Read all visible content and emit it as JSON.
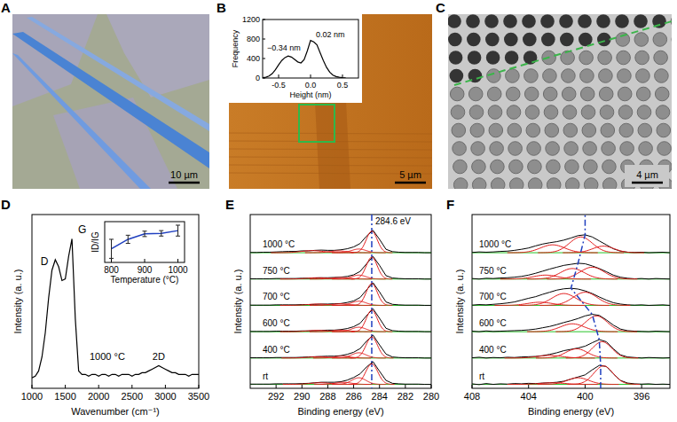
{
  "images": [
    {
      "label": "A",
      "scale_bar": "10 µm"
    },
    {
      "label": "B",
      "scale_bar": "5 µm"
    },
    {
      "label": "C",
      "scale_bar": "4 µm"
    }
  ],
  "chart_data": [
    {
      "type": "line",
      "x_label": "Height (nm)",
      "y_label": "Frequency",
      "xlim": [
        -0.75,
        0.75
      ],
      "ylim": [
        0,
        1200
      ],
      "xticks": [
        -0.5,
        {
          "value": 0,
          "label": "0.0"
        },
        0.5
      ],
      "yticks": [
        0,
        400,
        800,
        1200
      ],
      "annotations": [
        "−0.34 nm",
        "0.02 nm"
      ],
      "x": [
        -0.75,
        -0.7,
        -0.65,
        -0.6,
        -0.55,
        -0.5,
        -0.45,
        -0.4,
        -0.35,
        -0.3,
        -0.25,
        -0.2,
        -0.15,
        -0.1,
        -0.05,
        0,
        0.05,
        0.1,
        0.15,
        0.2,
        0.25,
        0.3,
        0.35,
        0.4,
        0.45,
        0.5,
        0.55
      ],
      "series": [
        {
          "color": "#000000",
          "values": [
            5,
            15,
            40,
            90,
            170,
            270,
            360,
            420,
            450,
            430,
            380,
            330,
            310,
            380,
            560,
            770,
            740,
            680,
            520,
            360,
            220,
            120,
            60,
            30,
            15,
            8,
            3
          ]
        }
      ]
    },
    {
      "type": "line",
      "label": "D",
      "x_label": "Wavenumber (cm⁻¹)",
      "y_label": "Intensity (a. u.)",
      "xlim": [
        1000,
        3500
      ],
      "ylim": [
        0,
        1
      ],
      "xticks": [
        1000,
        1500,
        2000,
        2500,
        3000,
        3500
      ],
      "tick_labels": "x",
      "annotations": [
        "D",
        "G",
        "2D",
        "1000 °C"
      ],
      "x": [
        1000,
        1050,
        1100,
        1150,
        1200,
        1250,
        1300,
        1350,
        1400,
        1450,
        1500,
        1550,
        1600,
        1650,
        1700,
        1750,
        1800,
        1850,
        1900,
        1950,
        2000,
        2050,
        2100,
        2150,
        2200,
        2250,
        2300,
        2350,
        2400,
        2450,
        2500,
        2550,
        2600,
        2650,
        2700,
        2750,
        2800,
        2850,
        2900,
        2950,
        3000,
        3050,
        3100,
        3150,
        3200,
        3250,
        3300,
        3350,
        3400,
        3450,
        3500
      ],
      "series": [
        {
          "color": "#000000",
          "values": [
            0.06,
            0.07,
            0.1,
            0.18,
            0.32,
            0.52,
            0.68,
            0.74,
            0.7,
            0.62,
            0.63,
            0.76,
            0.86,
            0.4,
            0.1,
            0.08,
            0.08,
            0.07,
            0.08,
            0.08,
            0.07,
            0.08,
            0.08,
            0.07,
            0.08,
            0.08,
            0.07,
            0.08,
            0.08,
            0.08,
            0.07,
            0.08,
            0.08,
            0.09,
            0.09,
            0.1,
            0.11,
            0.12,
            0.13,
            0.12,
            0.11,
            0.1,
            0.09,
            0.09,
            0.08,
            0.08,
            0.08,
            0.07,
            0.08,
            0.08,
            0.08
          ]
        }
      ]
    },
    {
      "type": "line",
      "x_label": "Temperature (°C)",
      "y_label": "ID/IG",
      "xlim": [
        780,
        1020
      ],
      "ylim": [
        1.1,
        2.6
      ],
      "xticks": [
        800,
        900,
        1000
      ],
      "tick_labels": "x",
      "x": [
        800,
        850,
        900,
        950,
        1000
      ],
      "series": [
        {
          "color": "#1f3fbf",
          "values": [
            1.6,
            1.95,
            2.15,
            2.17,
            2.27
          ],
          "errors": [
            0.35,
            0.15,
            0.1,
            0.1,
            0.2
          ]
        }
      ]
    },
    {
      "type": "line",
      "label": "E",
      "x_label": "Binding energy (eV)",
      "y_label": "Intensity (a. u.)",
      "xlim": [
        294,
        280
      ],
      "ylim": [
        0,
        6.6
      ],
      "xticks": [
        292,
        290,
        288,
        286,
        284,
        282,
        280
      ],
      "tick_labels": "x",
      "ref_line": 284.6,
      "annotations": [
        "284.6 eV"
      ],
      "x": [
        294,
        293.5,
        293,
        292.5,
        292,
        291.5,
        291,
        290.5,
        290,
        289.5,
        289,
        288.5,
        288,
        287.5,
        287,
        286.5,
        286,
        285.5,
        285,
        284.5,
        284,
        283.5,
        283,
        282.5,
        282,
        281.5,
        281,
        280.5,
        280
      ],
      "series": [
        {
          "name": "rt",
          "color": "#000000",
          "baseline": 0.15,
          "components": [
            {
              "center": 284.6,
              "height": 0.78,
              "fwhm": 1.1
            },
            {
              "center": 285.6,
              "height": 0.25,
              "fwhm": 1.3
            },
            {
              "center": 286.8,
              "height": 0.08,
              "fwhm": 1.4
            },
            {
              "center": 288.6,
              "height": 0.06,
              "fwhm": 1.8
            }
          ],
          "values": [
            0.16,
            0.16,
            0.16,
            0.16,
            0.17,
            0.17,
            0.17,
            0.17,
            0.18,
            0.19,
            0.21,
            0.23,
            0.23,
            0.23,
            0.25,
            0.31,
            0.41,
            0.55,
            0.81,
            1.01,
            0.65,
            0.3,
            0.19,
            0.17,
            0.16,
            0.16,
            0.16,
            0.15,
            0.15
          ]
        },
        {
          "name": "400 °C",
          "color": "#000000",
          "baseline": 1.15,
          "components": [
            {
              "center": 284.6,
              "height": 0.8,
              "fwhm": 1.05
            },
            {
              "center": 285.6,
              "height": 0.2,
              "fwhm": 1.3
            },
            {
              "center": 286.9,
              "height": 0.07,
              "fwhm": 1.4
            },
            {
              "center": 288.7,
              "height": 0.05,
              "fwhm": 1.8
            }
          ],
          "values": [
            1.16,
            1.16,
            1.16,
            1.16,
            1.17,
            1.17,
            1.17,
            1.17,
            1.18,
            1.19,
            1.2,
            1.21,
            1.22,
            1.22,
            1.24,
            1.29,
            1.37,
            1.51,
            1.79,
            2.02,
            1.65,
            1.3,
            1.19,
            1.17,
            1.16,
            1.16,
            1.16,
            1.15,
            1.15
          ]
        },
        {
          "name": "600 °C",
          "color": "#000000",
          "baseline": 2.15,
          "components": [
            {
              "center": 284.6,
              "height": 0.82,
              "fwhm": 1.0
            },
            {
              "center": 285.6,
              "height": 0.17,
              "fwhm": 1.3
            },
            {
              "center": 287.0,
              "height": 0.06,
              "fwhm": 1.5
            },
            {
              "center": 288.8,
              "height": 0.05,
              "fwhm": 1.8
            }
          ],
          "values": [
            2.16,
            2.16,
            2.16,
            2.16,
            2.17,
            2.17,
            2.17,
            2.17,
            2.18,
            2.18,
            2.19,
            2.2,
            2.21,
            2.21,
            2.23,
            2.27,
            2.34,
            2.47,
            2.76,
            3.02,
            2.66,
            2.28,
            2.19,
            2.17,
            2.16,
            2.16,
            2.16,
            2.15,
            2.15
          ]
        },
        {
          "name": "700 °C",
          "color": "#000000",
          "baseline": 3.15,
          "components": [
            {
              "center": 284.6,
              "height": 0.83,
              "fwhm": 1.0
            },
            {
              "center": 285.6,
              "height": 0.16,
              "fwhm": 1.3
            },
            {
              "center": 287.0,
              "height": 0.06,
              "fwhm": 1.5
            },
            {
              "center": 288.8,
              "height": 0.05,
              "fwhm": 1.8
            }
          ],
          "values": [
            3.16,
            3.16,
            3.16,
            3.16,
            3.17,
            3.17,
            3.17,
            3.17,
            3.18,
            3.18,
            3.19,
            3.2,
            3.2,
            3.21,
            3.22,
            3.26,
            3.32,
            3.45,
            3.74,
            4.01,
            3.66,
            3.28,
            3.19,
            3.17,
            3.16,
            3.16,
            3.16,
            3.15,
            3.15
          ]
        },
        {
          "name": "750 °C",
          "color": "#000000",
          "baseline": 4.15,
          "components": [
            {
              "center": 284.6,
              "height": 0.83,
              "fwhm": 1.0
            },
            {
              "center": 285.6,
              "height": 0.15,
              "fwhm": 1.3
            },
            {
              "center": 287.0,
              "height": 0.06,
              "fwhm": 1.5
            },
            {
              "center": 288.8,
              "height": 0.05,
              "fwhm": 1.8
            }
          ],
          "values": [
            4.16,
            4.16,
            4.16,
            4.16,
            4.17,
            4.17,
            4.17,
            4.17,
            4.18,
            4.18,
            4.19,
            4.2,
            4.2,
            4.21,
            4.22,
            4.25,
            4.31,
            4.44,
            4.73,
            5.01,
            4.67,
            4.28,
            4.19,
            4.17,
            4.16,
            4.16,
            4.16,
            4.15,
            4.15
          ]
        },
        {
          "name": "1000 °C",
          "color": "#000000",
          "baseline": 5.15,
          "components": [
            {
              "center": 284.6,
              "height": 0.82,
              "fwhm": 1.0
            },
            {
              "center": 285.6,
              "height": 0.14,
              "fwhm": 1.3
            },
            {
              "center": 287.2,
              "height": 0.07,
              "fwhm": 1.6
            },
            {
              "center": 289.2,
              "height": 0.08,
              "fwhm": 2.0
            }
          ],
          "values": [
            5.16,
            5.16,
            5.17,
            5.17,
            5.18,
            5.19,
            5.2,
            5.2,
            5.22,
            5.22,
            5.24,
            5.25,
            5.24,
            5.24,
            5.26,
            5.3,
            5.37,
            5.5,
            5.78,
            6.0,
            5.66,
            5.28,
            5.19,
            5.17,
            5.16,
            5.16,
            5.16,
            5.15,
            5.15
          ]
        }
      ]
    },
    {
      "type": "line",
      "label": "F",
      "x_label": "Binding energy (eV)",
      "y_label": "Intensity (a. u.)",
      "xlim": [
        408,
        394
      ],
      "ylim": [
        0,
        6.6
      ],
      "xticks": [
        408,
        404,
        400,
        396
      ],
      "tick_labels": "x",
      "x": [
        408,
        407.5,
        407,
        406.5,
        406,
        405.5,
        405,
        404.5,
        404,
        403.5,
        403,
        402.5,
        402,
        401.5,
        401,
        400.5,
        400,
        399.5,
        399,
        398.5,
        398,
        397.5,
        397,
        396.5,
        396,
        395.5,
        395,
        394.5,
        394
      ],
      "series": [
        {
          "name": "rt",
          "color": "#000000",
          "baseline": 0.15,
          "peak_position": 398.9,
          "components": [
            {
              "center": 398.7,
              "height": 0.7,
              "fwhm": 1.6
            },
            {
              "center": 400.5,
              "height": 0.25,
              "fwhm": 1.8
            },
            {
              "center": 402.3,
              "height": 0.06,
              "fwhm": 2
            }
          ],
          "values": [
            0.17,
            0.14,
            0.18,
            0.15,
            0.17,
            0.16,
            0.18,
            0.17,
            0.19,
            0.18,
            0.2,
            0.21,
            0.23,
            0.27,
            0.35,
            0.43,
            0.51,
            0.7,
            0.87,
            0.83,
            0.55,
            0.3,
            0.2,
            0.17,
            0.16,
            0.17,
            0.15,
            0.16,
            0.15
          ]
        },
        {
          "name": "400 °C",
          "color": "#000000",
          "baseline": 1.15,
          "peak_position": 399.0,
          "components": [
            {
              "center": 398.8,
              "height": 0.62,
              "fwhm": 1.6
            },
            {
              "center": 400.6,
              "height": 0.35,
              "fwhm": 1.8
            },
            {
              "center": 402.5,
              "height": 0.1,
              "fwhm": 2
            }
          ],
          "values": [
            1.16,
            1.18,
            1.15,
            1.17,
            1.16,
            1.18,
            1.17,
            1.19,
            1.2,
            1.21,
            1.24,
            1.29,
            1.35,
            1.43,
            1.48,
            1.53,
            1.6,
            1.73,
            1.85,
            1.77,
            1.5,
            1.27,
            1.19,
            1.17,
            1.15,
            1.17,
            1.16,
            1.15,
            1.16
          ]
        },
        {
          "name": "600 °C",
          "color": "#000000",
          "baseline": 2.15,
          "peak_position": 399.5,
          "components": [
            {
              "center": 399.2,
              "height": 0.6,
              "fwhm": 1.8
            },
            {
              "center": 400.9,
              "height": 0.3,
              "fwhm": 2.0
            }
          ],
          "values": [
            2.17,
            2.15,
            2.18,
            2.16,
            2.17,
            2.18,
            2.19,
            2.2,
            2.22,
            2.25,
            2.3,
            2.35,
            2.42,
            2.5,
            2.57,
            2.65,
            2.75,
            2.81,
            2.77,
            2.6,
            2.4,
            2.25,
            2.19,
            2.17,
            2.16,
            2.15,
            2.17,
            2.16,
            2.15
          ]
        },
        {
          "name": "700 °C",
          "color": "#000000",
          "baseline": 3.15,
          "peak_position": 401.0,
          "components": [
            {
              "center": 400.0,
              "height": 0.5,
              "fwhm": 2.0
            },
            {
              "center": 401.5,
              "height": 0.45,
              "fwhm": 2.0
            },
            {
              "center": 403.2,
              "height": 0.12,
              "fwhm": 2.0
            }
          ],
          "values": [
            3.16,
            3.18,
            3.17,
            3.19,
            3.21,
            3.24,
            3.28,
            3.35,
            3.42,
            3.48,
            3.57,
            3.65,
            3.73,
            3.78,
            3.8,
            3.77,
            3.7,
            3.6,
            3.47,
            3.35,
            3.25,
            3.2,
            3.17,
            3.16,
            3.17,
            3.15,
            3.16,
            3.17,
            3.15
          ]
        },
        {
          "name": "750 °C",
          "color": "#000000",
          "baseline": 4.15,
          "peak_position": 400.5,
          "components": [
            {
              "center": 399.5,
              "height": 0.45,
              "fwhm": 2.0
            },
            {
              "center": 400.9,
              "height": 0.4,
              "fwhm": 2.0
            },
            {
              "center": 402.8,
              "height": 0.15,
              "fwhm": 2.0
            }
          ],
          "values": [
            4.17,
            4.15,
            4.18,
            4.17,
            4.19,
            4.2,
            4.22,
            4.25,
            4.3,
            4.37,
            4.45,
            4.53,
            4.6,
            4.67,
            4.71,
            4.75,
            4.73,
            4.65,
            4.55,
            4.43,
            4.3,
            4.22,
            4.18,
            4.16,
            4.17,
            4.15,
            4.17,
            4.16,
            4.15
          ]
        },
        {
          "name": "1000 °C",
          "color": "#000000",
          "baseline": 5.15,
          "peak_position": 400.0,
          "components": [
            {
              "center": 398.7,
              "height": 0.25,
              "fwhm": 1.8
            },
            {
              "center": 400.3,
              "height": 0.6,
              "fwhm": 1.9
            },
            {
              "center": 402.3,
              "height": 0.3,
              "fwhm": 2.0
            }
          ],
          "values": [
            5.16,
            5.18,
            5.17,
            5.18,
            5.2,
            5.21,
            5.24,
            5.28,
            5.33,
            5.41,
            5.48,
            5.53,
            5.57,
            5.63,
            5.71,
            5.8,
            5.83,
            5.75,
            5.6,
            5.45,
            5.3,
            5.21,
            5.17,
            5.16,
            5.17,
            5.15,
            5.16,
            5.17,
            5.15
          ]
        }
      ]
    }
  ]
}
